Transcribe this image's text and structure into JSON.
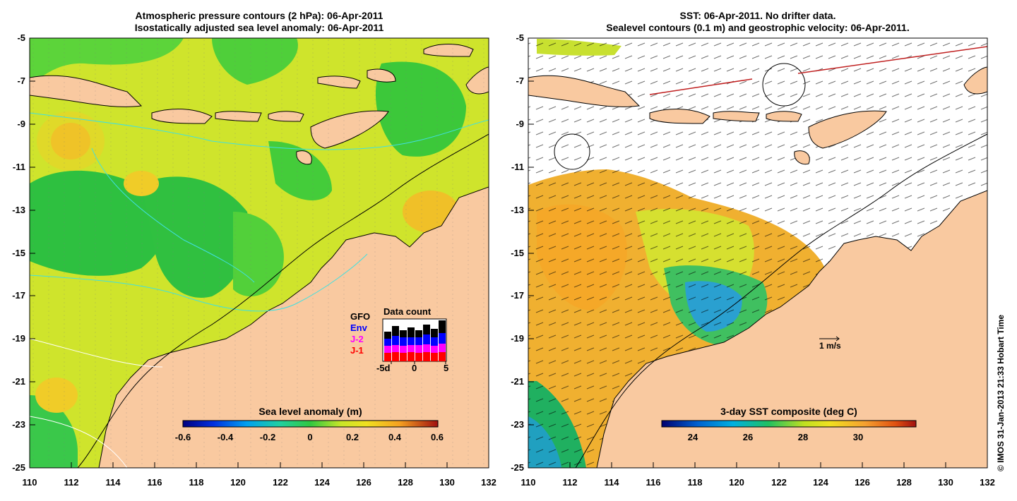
{
  "left_panel": {
    "title_line1": "Atmospheric pressure contours (2 hPa): 06-Apr-2011",
    "title_line2": "Isostatically adjusted sea level anomaly: 06-Apr-2011",
    "colorbar_title": "Sea level anomaly (m)",
    "colorbar_ticks": [
      "-0.6",
      "-0.4",
      "-0.2",
      "0",
      "0.2",
      "0.4",
      "0.6"
    ],
    "inset": {
      "title": "Data count",
      "legend": [
        {
          "label": "GFO",
          "color": "#000000"
        },
        {
          "label": "Env",
          "color": "#0000ff"
        },
        {
          "label": "J-2",
          "color": "#ff00ff"
        },
        {
          "label": "J-1",
          "color": "#ff0000"
        }
      ],
      "x_ticks": [
        "-5d",
        "0",
        "5"
      ]
    }
  },
  "right_panel": {
    "title_line1": "SST: 06-Apr-2011. No drifter data.",
    "title_line2": "Sealevel contours (0.1 m) and geostrophic velocity: 06-Apr-2011.",
    "colorbar_title": "3-day SST composite (deg C)",
    "colorbar_ticks": [
      "24",
      "26",
      "28",
      "30"
    ],
    "velocity_scale": "1 m/s"
  },
  "axes": {
    "y_ticks": [
      "-5",
      "-7",
      "-9",
      "-11",
      "-13",
      "-15",
      "-17",
      "-19",
      "-21",
      "-23",
      "-25"
    ],
    "x_ticks": [
      "110",
      "112",
      "114",
      "116",
      "118",
      "120",
      "122",
      "124",
      "126",
      "128",
      "130",
      "132"
    ]
  },
  "credit": "© IMOS 31-Jan-2013 21:33 Hobart Time",
  "colors": {
    "land": "#f9c9a0",
    "sla_green": "#28c83c",
    "sla_yellow": "#d6e628",
    "sst_orange": "#f5a830"
  }
}
